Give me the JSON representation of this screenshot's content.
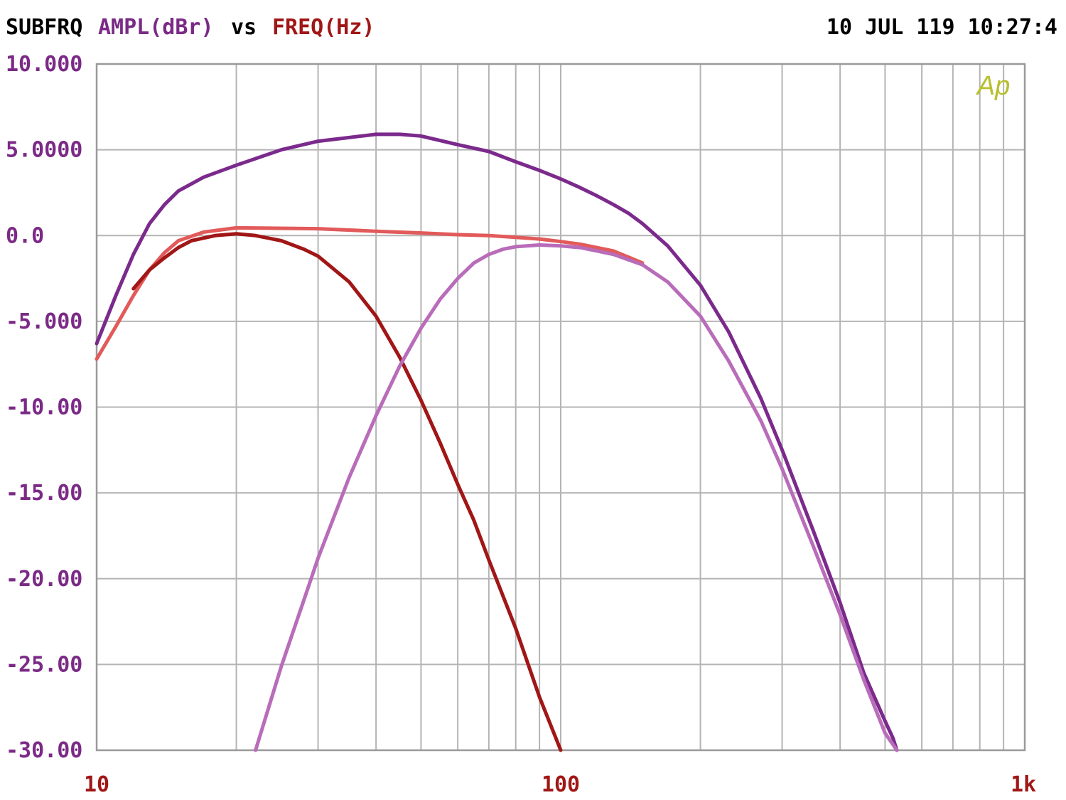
{
  "header": {
    "prefix": "SUBFRQ",
    "y_quantity": "AMPL(dBr)",
    "vs": "vs",
    "x_quantity": "FREQ(Hz)",
    "timestamp": "10 JUL 119 10:27:4",
    "logo": "Ap"
  },
  "colors": {
    "background": "#ffffff",
    "grid": "#b4b4b4",
    "frame": "#9a9a9a",
    "header_black": "#000000",
    "y_axis_text": "#7b2a86",
    "x_axis_text": "#a11616",
    "logo": "#b8bf2e"
  },
  "chart_data": {
    "type": "line",
    "x_scale": "log",
    "xlim": [
      10,
      1000
    ],
    "ylim": [
      -30,
      10
    ],
    "grid": true,
    "xlabel": "FREQ(Hz)",
    "ylabel": "AMPL(dBr)",
    "x_tick_labels": [
      {
        "value": 10,
        "label": "10"
      },
      {
        "value": 100,
        "label": "100"
      },
      {
        "value": 1000,
        "label": "1k"
      }
    ],
    "y_tick_labels": [
      {
        "value": 10,
        "label": "10.000"
      },
      {
        "value": 5,
        "label": "5.0000"
      },
      {
        "value": 0,
        "label": "0.0"
      },
      {
        "value": -5,
        "label": "-5.000"
      },
      {
        "value": -10,
        "label": "-10.00"
      },
      {
        "value": -15,
        "label": "-15.00"
      },
      {
        "value": -20,
        "label": "-20.00"
      },
      {
        "value": -25,
        "label": "-25.00"
      },
      {
        "value": -30,
        "label": "-30.00"
      }
    ],
    "series": [
      {
        "color": "#7b2a8c",
        "width": 5,
        "points": [
          [
            10,
            -6.3
          ],
          [
            11,
            -3.5
          ],
          [
            12,
            -1.1
          ],
          [
            13,
            0.7
          ],
          [
            14,
            1.8
          ],
          [
            15,
            2.6
          ],
          [
            17,
            3.4
          ],
          [
            20,
            4.1
          ],
          [
            25,
            5
          ],
          [
            30,
            5.5
          ],
          [
            40,
            5.9
          ],
          [
            45,
            5.9
          ],
          [
            50,
            5.8
          ],
          [
            60,
            5.3
          ],
          [
            70,
            4.9
          ],
          [
            80,
            4.3
          ],
          [
            90,
            3.8
          ],
          [
            100,
            3.3
          ],
          [
            110,
            2.8
          ],
          [
            120,
            2.3
          ],
          [
            130,
            1.8
          ],
          [
            140,
            1.3
          ],
          [
            150,
            0.7
          ],
          [
            170,
            -0.6
          ],
          [
            200,
            -2.9
          ],
          [
            230,
            -5.6
          ],
          [
            270,
            -9.5
          ],
          [
            300,
            -12.5
          ],
          [
            350,
            -17.2
          ],
          [
            400,
            -21.4
          ],
          [
            450,
            -25.5
          ],
          [
            500,
            -28.3
          ],
          [
            520,
            -29.3
          ],
          [
            530,
            -30
          ]
        ]
      },
      {
        "color": "#e25a5a",
        "width": 5,
        "points": [
          [
            10,
            -7.2
          ],
          [
            11,
            -5.3
          ],
          [
            12,
            -3.5
          ],
          [
            13,
            -2
          ],
          [
            14,
            -1
          ],
          [
            15,
            -0.3
          ],
          [
            17,
            0.2
          ],
          [
            20,
            0.45
          ],
          [
            30,
            0.4
          ],
          [
            40,
            0.25
          ],
          [
            50,
            0.15
          ],
          [
            60,
            0.05
          ],
          [
            70,
            0
          ],
          [
            80,
            -0.1
          ],
          [
            90,
            -0.2
          ],
          [
            100,
            -0.35
          ],
          [
            110,
            -0.5
          ],
          [
            130,
            -0.9
          ],
          [
            150,
            -1.6
          ]
        ]
      },
      {
        "color": "#a11616",
        "width": 5,
        "points": [
          [
            12,
            -3.1
          ],
          [
            13,
            -2
          ],
          [
            14,
            -1.3
          ],
          [
            15,
            -0.7
          ],
          [
            16,
            -0.3
          ],
          [
            18,
            0
          ],
          [
            20,
            0.1
          ],
          [
            22,
            0
          ],
          [
            25,
            -0.3
          ],
          [
            28,
            -0.8
          ],
          [
            30,
            -1.2
          ],
          [
            35,
            -2.7
          ],
          [
            40,
            -4.7
          ],
          [
            45,
            -7.1
          ],
          [
            50,
            -9.6
          ],
          [
            55,
            -12.1
          ],
          [
            60,
            -14.5
          ],
          [
            65,
            -16.6
          ],
          [
            70,
            -18.9
          ],
          [
            80,
            -22.9
          ],
          [
            90,
            -26.9
          ],
          [
            100,
            -30
          ]
        ]
      },
      {
        "color": "#b86cb9",
        "width": 5,
        "points": [
          [
            22,
            -30
          ],
          [
            25,
            -25.1
          ],
          [
            28,
            -21.2
          ],
          [
            30,
            -18.8
          ],
          [
            35,
            -14.1
          ],
          [
            40,
            -10.5
          ],
          [
            45,
            -7.6
          ],
          [
            50,
            -5.4
          ],
          [
            55,
            -3.7
          ],
          [
            60,
            -2.5
          ],
          [
            65,
            -1.6
          ],
          [
            70,
            -1.1
          ],
          [
            75,
            -0.8
          ],
          [
            80,
            -0.65
          ],
          [
            90,
            -0.55
          ],
          [
            100,
            -0.6
          ],
          [
            110,
            -0.7
          ],
          [
            120,
            -0.9
          ],
          [
            130,
            -1.1
          ],
          [
            150,
            -1.7
          ],
          [
            170,
            -2.7
          ],
          [
            200,
            -4.7
          ],
          [
            230,
            -7.3
          ],
          [
            270,
            -10.8
          ],
          [
            300,
            -13.6
          ],
          [
            350,
            -18.1
          ],
          [
            400,
            -22.1
          ],
          [
            450,
            -25.9
          ],
          [
            500,
            -29
          ],
          [
            530,
            -30
          ]
        ]
      }
    ]
  }
}
